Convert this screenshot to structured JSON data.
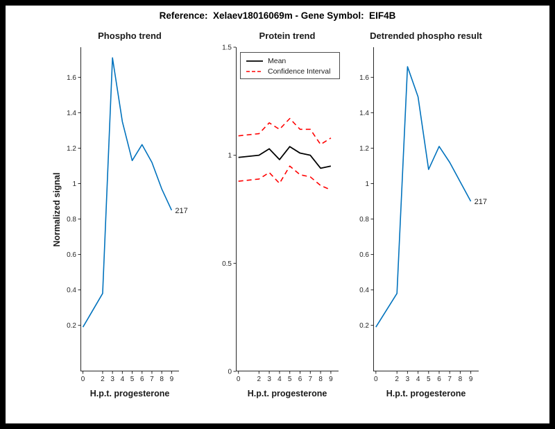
{
  "background": {
    "frame": "#000000",
    "figure": "#ffffff"
  },
  "figure_title": "Reference:  Xelaev18016069m - Gene Symbol:  EIF4B",
  "chart_data": [
    {
      "type": "line",
      "title": "Phospho trend",
      "xlabel": "H.p.t. progesterone",
      "ylabel": "Normalized signal",
      "grid": false,
      "x": [
        0,
        2,
        3,
        4,
        5,
        6,
        7,
        8,
        9
      ],
      "xtick_labels": [
        "0",
        "2",
        "3",
        "4",
        "5",
        "6",
        "7",
        "8",
        "9"
      ],
      "xlim": [
        -0.25,
        9.75
      ],
      "ylim": [
        -0.06,
        1.77
      ],
      "yticks": [
        0.2,
        0.4,
        0.6,
        0.8,
        1,
        1.2,
        1.4,
        1.6
      ],
      "ytick_labels": [
        "0.2",
        "0.4",
        "0.6",
        "0.8",
        "1",
        "1.2",
        "1.4",
        "1.6"
      ],
      "series": [
        {
          "name": "Phospho signal 217",
          "color": "#0072BD",
          "dash": "solid",
          "width": 1.6,
          "values": [
            0.19,
            0.38,
            1.71,
            1.35,
            1.13,
            1.22,
            1.12,
            0.97,
            0.85
          ]
        }
      ],
      "annotation": {
        "text": "217",
        "x": 9,
        "y": 0.85
      }
    },
    {
      "type": "line",
      "title": "Protein trend",
      "xlabel": "H.p.t. progesterone",
      "ylabel": "",
      "grid": false,
      "x": [
        0,
        2,
        3,
        4,
        5,
        6,
        7,
        8,
        9
      ],
      "xtick_labels": [
        "0",
        "2",
        "3",
        "4",
        "5",
        "6",
        "7",
        "8",
        "9"
      ],
      "xlim": [
        -0.25,
        9.75
      ],
      "ylim": [
        0,
        1.5
      ],
      "yticks": [
        0,
        0.5,
        1,
        1.5
      ],
      "ytick_labels": [
        "0",
        "0.5",
        "1",
        "1.5"
      ],
      "legend": {
        "position": "northwest",
        "entries": [
          "Mean",
          "Confidence Interval"
        ]
      },
      "series": [
        {
          "name": "Mean",
          "color": "#000000",
          "dash": "solid",
          "width": 1.8,
          "values": [
            0.99,
            1.0,
            1.03,
            0.98,
            1.04,
            1.01,
            1.0,
            0.94,
            0.95
          ]
        },
        {
          "name": "Confidence Interval upper",
          "color": "#ff0000",
          "dash": "dashed",
          "width": 1.6,
          "values": [
            1.09,
            1.1,
            1.15,
            1.12,
            1.17,
            1.12,
            1.12,
            1.05,
            1.08
          ]
        },
        {
          "name": "Confidence Interval lower",
          "color": "#ff0000",
          "dash": "dashed",
          "width": 1.6,
          "values": [
            0.88,
            0.89,
            0.92,
            0.87,
            0.95,
            0.91,
            0.9,
            0.86,
            0.84
          ]
        }
      ]
    },
    {
      "type": "line",
      "title": "Detrended phospho result",
      "xlabel": "H.p.t. progesterone",
      "ylabel": "",
      "grid": false,
      "x": [
        0,
        2,
        3,
        4,
        5,
        6,
        7,
        8,
        9
      ],
      "xtick_labels": [
        "0",
        "2",
        "3",
        "4",
        "5",
        "6",
        "7",
        "8",
        "9"
      ],
      "xlim": [
        -0.25,
        9.75
      ],
      "ylim": [
        -0.06,
        1.77
      ],
      "yticks": [
        0.2,
        0.4,
        0.6,
        0.8,
        1,
        1.2,
        1.4,
        1.6
      ],
      "ytick_labels": [
        "0.2",
        "0.4",
        "0.6",
        "0.8",
        "1",
        "1.2",
        "1.4",
        "1.6"
      ],
      "series": [
        {
          "name": "Detrended phospho signal 217",
          "color": "#0072BD",
          "dash": "solid",
          "width": 1.6,
          "values": [
            0.19,
            0.38,
            1.66,
            1.49,
            1.08,
            1.21,
            1.12,
            1.01,
            0.9
          ]
        }
      ],
      "annotation": {
        "text": "217",
        "x": 9,
        "y": 0.9
      }
    }
  ]
}
